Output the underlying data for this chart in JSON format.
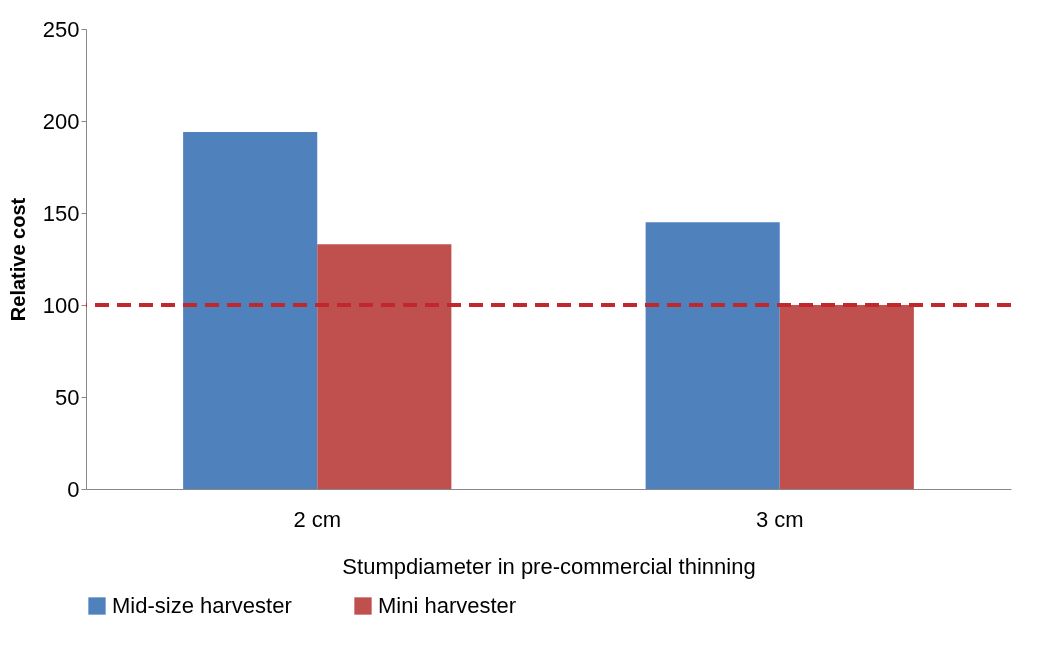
{
  "chart_data": {
    "type": "bar",
    "xlabel": "Stumpdiameter in pre-commercial thinning",
    "ylabel": "Relative cost",
    "categories": [
      "2 cm",
      "3 cm"
    ],
    "series": [
      {
        "name": "Mid-size harvester",
        "color": "#4f81bd",
        "values": [
          194,
          145
        ]
      },
      {
        "name": "Mini harvester",
        "color": "#c0504d",
        "values": [
          133,
          100
        ]
      }
    ],
    "ylim": [
      0,
      250
    ],
    "yticks": [
      0,
      50,
      100,
      150,
      200,
      250
    ],
    "grid": false,
    "legend": "bottom",
    "ref_lines": [
      {
        "axis": "y",
        "value": 100,
        "color": "#c0282d",
        "line_style": "dashed"
      }
    ]
  }
}
